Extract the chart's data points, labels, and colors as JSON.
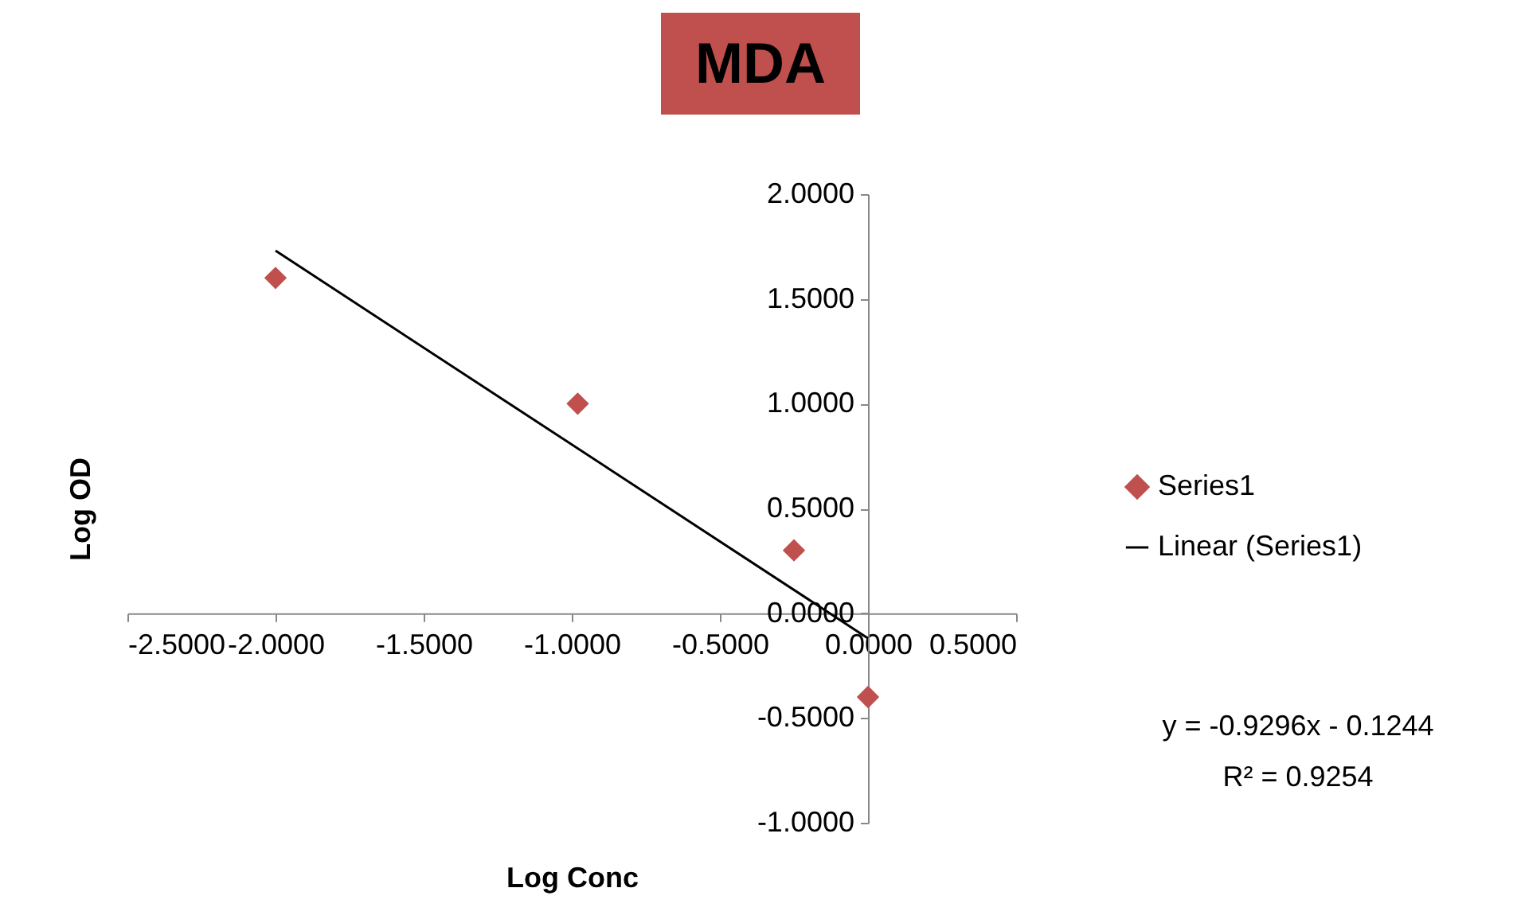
{
  "chart_data": {
    "type": "scatter",
    "title": "MDA",
    "xlabel": "Log Conc",
    "ylabel": "Log OD",
    "xlim": [
      -2.5,
      0.5
    ],
    "xticks": [
      {
        "value": -2.5,
        "label": "-2.5000"
      },
      {
        "value": -2,
        "label": "-2.0000"
      },
      {
        "value": -1.5,
        "label": "-1.5000"
      },
      {
        "value": -1,
        "label": "-1.0000"
      },
      {
        "value": -0.5,
        "label": "-0.5000"
      },
      {
        "value": 0,
        "label": "0.0000"
      },
      {
        "value": 0.5,
        "label": "0.5000"
      }
    ],
    "ylim": [
      -1,
      2
    ],
    "yticks": [
      {
        "value": -1,
        "label": "-1.0000"
      },
      {
        "value": -0.5,
        "label": "-0.5000"
      },
      {
        "value": 0,
        "label": "0.0000"
      },
      {
        "value": 0.5,
        "label": "0.5000"
      },
      {
        "value": 1,
        "label": "1.0000"
      },
      {
        "value": 1.5,
        "label": "1.5000"
      },
      {
        "value": 2,
        "label": "2.0000"
      }
    ],
    "legend": "right",
    "marker": "diamond",
    "series": [
      {
        "name": "Series1",
        "color": "#c0504d",
        "x": [
          -2,
          -0.98,
          -0.25,
          0
        ],
        "values": [
          1.6,
          1.0,
          0.3,
          -0.4
        ]
      },
      {
        "name": "Linear (Series1)",
        "type": "line",
        "marker": "none",
        "color": "#000000",
        "x": [
          -2,
          0
        ],
        "values": [
          1.73,
          -0.12
        ]
      }
    ],
    "annotations": [
      "y = -0.9296x - 0.1244",
      "R² = 0.9254"
    ]
  }
}
